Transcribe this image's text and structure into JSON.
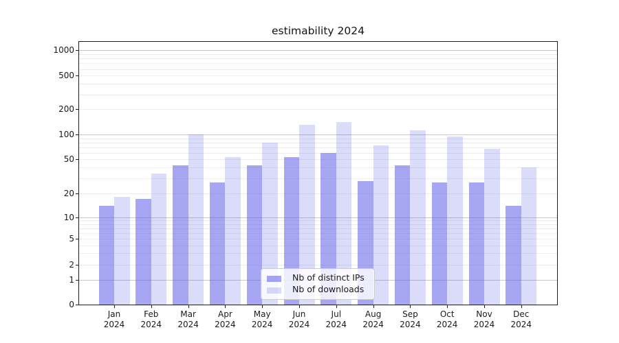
{
  "chart": {
    "title": "estimability 2024",
    "legend": {
      "items": [
        {
          "label": "Nb of distinct IPs"
        },
        {
          "label": "Nb of downloads"
        }
      ]
    }
  },
  "chart_data": {
    "type": "bar",
    "title": "estimability 2024",
    "categories": [
      "Jan 2024",
      "Feb 2024",
      "Mar 2024",
      "Apr 2024",
      "May 2024",
      "Jun 2024",
      "Jul 2024",
      "Aug 2024",
      "Sep 2024",
      "Oct 2024",
      "Nov 2024",
      "Dec 2024"
    ],
    "series": [
      {
        "name": "Nb of distinct IPs",
        "values": [
          14,
          17,
          43,
          27,
          43,
          53,
          60,
          28,
          43,
          27,
          27,
          14
        ],
        "base_color": "#5c5ce8",
        "alpha": 0.55,
        "rendered_color": "#a5a5f2"
      },
      {
        "name": "Nb of downloads",
        "values": [
          18,
          34,
          100,
          53,
          80,
          130,
          140,
          74,
          113,
          95,
          67,
          40
        ],
        "base_color": "#5c5ce8",
        "alpha": 0.22,
        "rendered_color": "#dbdbfa"
      }
    ],
    "yscale": "symlog",
    "yticks": [
      0,
      1,
      2,
      5,
      10,
      20,
      50,
      100,
      200,
      500,
      1000
    ],
    "ylim": [
      0,
      1300
    ],
    "grid": {
      "horizontal": true,
      "major_values": [
        1,
        10,
        100,
        1000
      ],
      "major_color": "#c6c6c6",
      "minor_color": "#ececec"
    },
    "legend_position": "lower center",
    "background": "#ffffff",
    "axis_color": "#1a1a1a"
  }
}
